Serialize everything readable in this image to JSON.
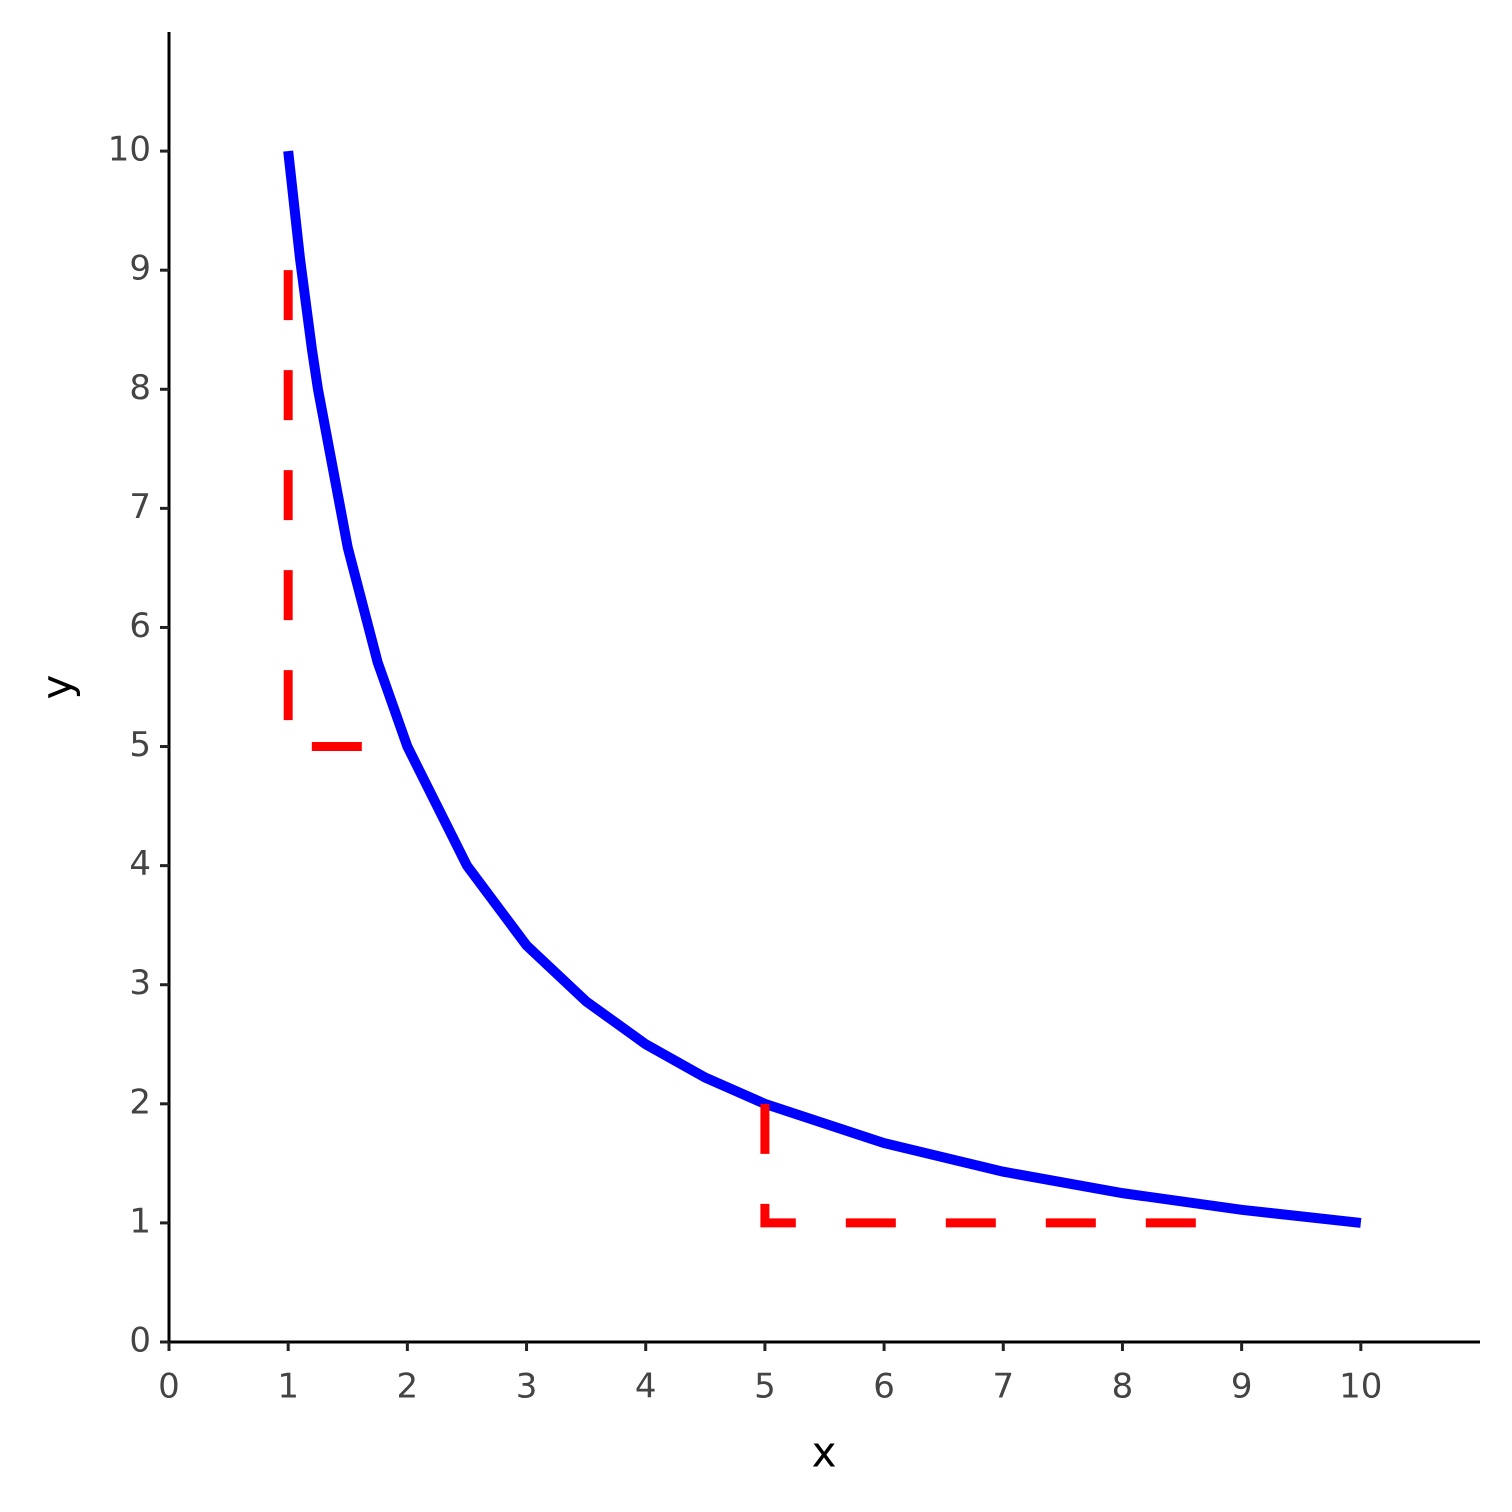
{
  "chart_data": {
    "type": "line",
    "xlabel": "x",
    "ylabel": "y",
    "xlim": [
      0,
      11
    ],
    "ylim": [
      0,
      11
    ],
    "xticks": [
      0,
      1,
      2,
      3,
      4,
      5,
      6,
      7,
      8,
      9,
      10
    ],
    "yticks": [
      0,
      1,
      2,
      3,
      4,
      5,
      6,
      7,
      8,
      9,
      10
    ],
    "grid": false,
    "series": [
      {
        "color": "#0000ff",
        "linestyle": "solid",
        "x": [
          1,
          1.1,
          1.2,
          1.25,
          1.5,
          1.75,
          2,
          2.5,
          3,
          3.5,
          4,
          4.5,
          5,
          6,
          7,
          8,
          9,
          10
        ],
        "values": [
          10,
          9.09,
          8.33,
          8,
          6.67,
          5.71,
          5,
          4,
          3.33,
          2.86,
          2.5,
          2.22,
          2,
          1.67,
          1.43,
          1.25,
          1.11,
          1
        ]
      },
      {
        "color": "#ff0000",
        "linestyle": "dashed",
        "x": [
          1,
          1,
          2
        ],
        "values": [
          9,
          5,
          5
        ]
      },
      {
        "color": "#ff0000",
        "linestyle": "dashed",
        "x": [
          5,
          5,
          9
        ],
        "values": [
          2,
          1,
          1
        ]
      }
    ]
  }
}
